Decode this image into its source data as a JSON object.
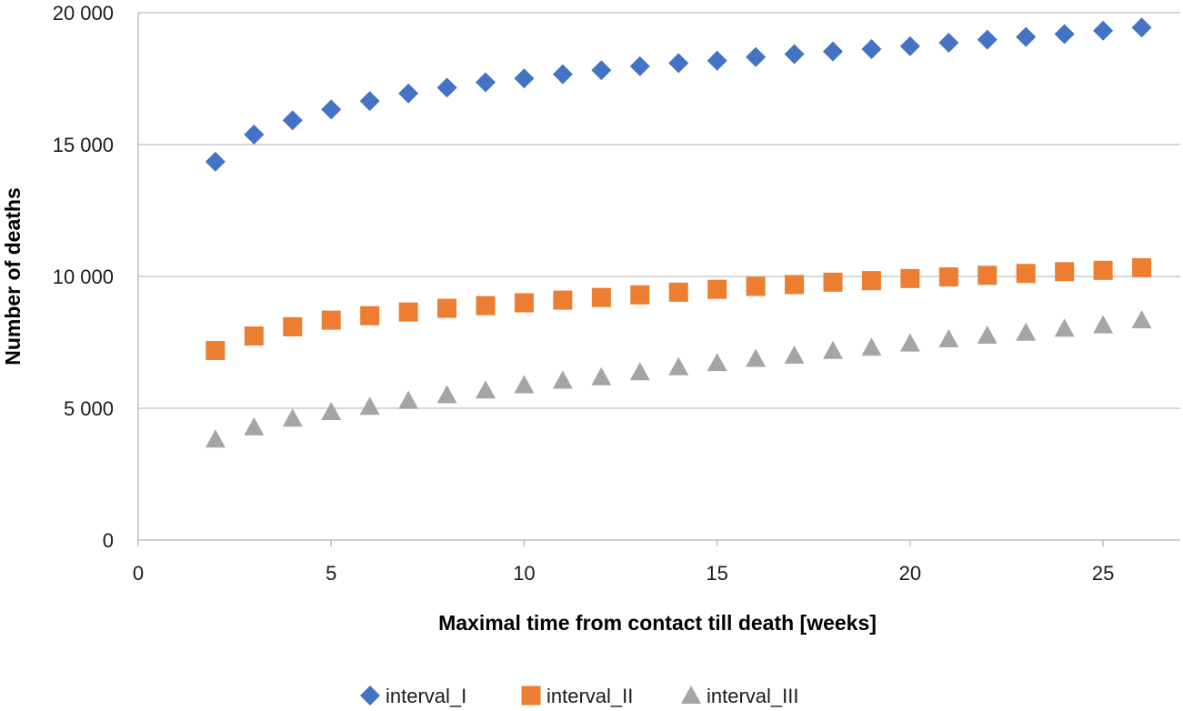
{
  "chart_data": {
    "type": "scatter",
    "title": "",
    "xlabel": "Maximal time from contact till death [weeks]",
    "ylabel": "Number of deaths",
    "xlim": [
      0,
      27
    ],
    "ylim": [
      0,
      20000
    ],
    "x_ticks": [
      0,
      5,
      10,
      15,
      20,
      25
    ],
    "x_tick_labels": [
      "0",
      "5",
      "10",
      "15",
      "20",
      "25"
    ],
    "y_ticks": [
      0,
      5000,
      10000,
      15000,
      20000
    ],
    "y_tick_labels": [
      "0",
      "5 000",
      "10 000",
      "15 000",
      "20 000"
    ],
    "grid": "horizontal",
    "legend_position": "bottom",
    "x": [
      2,
      3,
      4,
      5,
      6,
      7,
      8,
      9,
      10,
      11,
      12,
      13,
      14,
      15,
      16,
      17,
      18,
      19,
      20,
      21,
      22,
      23,
      24,
      25,
      26
    ],
    "series": [
      {
        "name": "interval_I",
        "marker": "diamond",
        "color": "#4472C4",
        "values": [
          14350,
          15380,
          15920,
          16330,
          16650,
          16940,
          17160,
          17360,
          17510,
          17670,
          17820,
          17970,
          18090,
          18180,
          18320,
          18430,
          18530,
          18620,
          18730,
          18860,
          18980,
          19080,
          19190,
          19320,
          19440
        ]
      },
      {
        "name": "interval_II",
        "marker": "square",
        "color": "#ED7D31",
        "values": [
          7190,
          7740,
          8090,
          8340,
          8510,
          8650,
          8790,
          8890,
          9000,
          9100,
          9200,
          9300,
          9400,
          9510,
          9620,
          9690,
          9780,
          9840,
          9920,
          9980,
          10040,
          10110,
          10180,
          10230,
          10330
        ]
      },
      {
        "name": "interval_III",
        "marker": "triangle",
        "color": "#A5A5A5",
        "values": [
          3820,
          4280,
          4610,
          4860,
          5060,
          5290,
          5500,
          5680,
          5880,
          6050,
          6180,
          6370,
          6560,
          6720,
          6880,
          7000,
          7180,
          7300,
          7460,
          7620,
          7760,
          7870,
          8020,
          8150,
          8340
        ]
      }
    ],
    "legend": [
      {
        "label": "interval_I",
        "marker": "diamond",
        "color": "#4472C4"
      },
      {
        "label": "interval_II",
        "marker": "square",
        "color": "#ED7D31"
      },
      {
        "label": "interval_III",
        "marker": "triangle",
        "color": "#A5A5A5"
      }
    ]
  }
}
